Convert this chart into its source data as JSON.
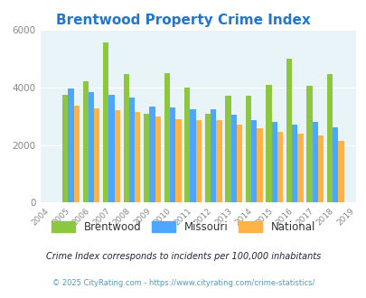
{
  "title": "Brentwood Property Crime Index",
  "years": [
    2004,
    2005,
    2006,
    2007,
    2008,
    2009,
    2010,
    2011,
    2012,
    2013,
    2014,
    2015,
    2016,
    2017,
    2018,
    2019
  ],
  "brentwood": [
    null,
    3750,
    4200,
    5550,
    4450,
    3100,
    4500,
    4000,
    3100,
    3700,
    3700,
    4100,
    5000,
    4050,
    4450,
    null
  ],
  "missouri": [
    null,
    3950,
    3830,
    3750,
    3650,
    3350,
    3300,
    3250,
    3250,
    3050,
    2850,
    2800,
    2700,
    2800,
    2600,
    null
  ],
  "national": [
    null,
    3380,
    3270,
    3200,
    3150,
    3000,
    2900,
    2850,
    2850,
    2700,
    2580,
    2450,
    2380,
    2320,
    2150,
    null
  ],
  "brentwood_color": "#8dc63f",
  "missouri_color": "#4da6ff",
  "national_color": "#ffb347",
  "bg_color": "#e8f4f8",
  "title_color": "#2277cc",
  "legend_text_color": "#333333",
  "footnote1_color": "#222244",
  "footnote2_color": "#5599bb",
  "ylim": [
    0,
    6000
  ],
  "yticks": [
    0,
    2000,
    4000,
    6000
  ],
  "footnote1": "Crime Index corresponds to incidents per 100,000 inhabitants",
  "footnote2": "© 2025 CityRating.com - https://www.cityrating.com/crime-statistics/",
  "legend_labels": [
    "Brentwood",
    "Missouri",
    "National"
  ]
}
